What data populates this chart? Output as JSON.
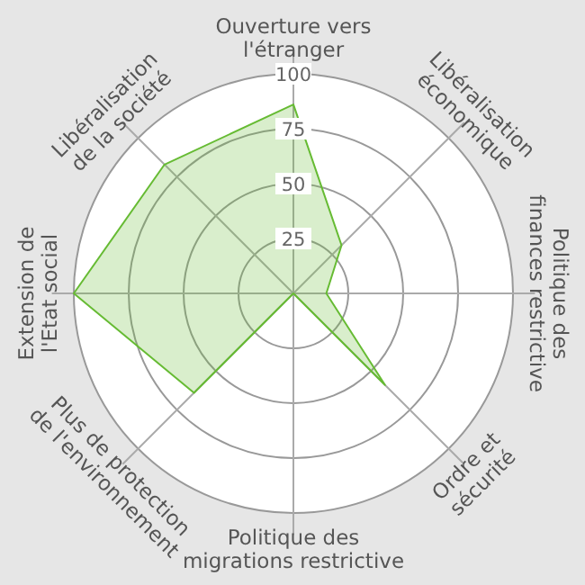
{
  "chart_data": {
    "type": "radar",
    "categories": [
      "Ouverture vers\nl'étranger",
      "Libéralisation\néconomique",
      "Politique des\nfinances restrictive",
      "Ordre et\nsécurité",
      "Politique des\nmigrations restrictive",
      "Plus de protection\nde l'environnement",
      "Extension de\nl'Etat social",
      "Libéralisation\nde la société"
    ],
    "series": [
      {
        "color": "#66bb33",
        "values": [
          86,
          31,
          15,
          59,
          0,
          64,
          100,
          83
        ]
      }
    ],
    "ylim": [
      0,
      100
    ],
    "yticks": [
      25,
      50,
      75,
      100
    ],
    "grid": true
  }
}
